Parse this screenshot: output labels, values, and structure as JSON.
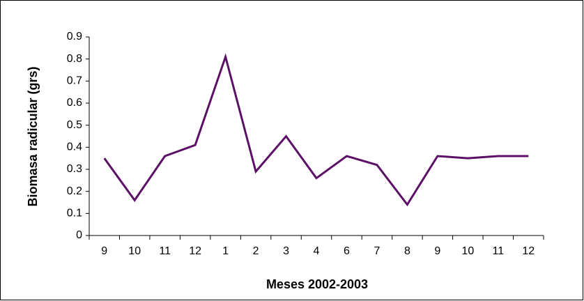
{
  "chart_data": {
    "type": "line",
    "x_label": "Meses 2002-2003",
    "y_label": "Biomasa radicular (grs)",
    "categories": [
      "9",
      "10",
      "11",
      "12",
      "1",
      "2",
      "3",
      "4",
      "6",
      "7",
      "8",
      "9",
      "10",
      "11",
      "12"
    ],
    "values": [
      0.35,
      0.16,
      0.36,
      0.41,
      0.81,
      0.29,
      0.45,
      0.26,
      0.36,
      0.32,
      0.14,
      0.36,
      0.35,
      0.36,
      0.36
    ],
    "color": "#5c0f66",
    "ylim": [
      0,
      0.9
    ],
    "yticks": [
      0,
      0.1,
      0.2,
      0.3,
      0.4,
      0.5,
      0.6,
      0.7,
      0.8,
      0.9
    ]
  }
}
